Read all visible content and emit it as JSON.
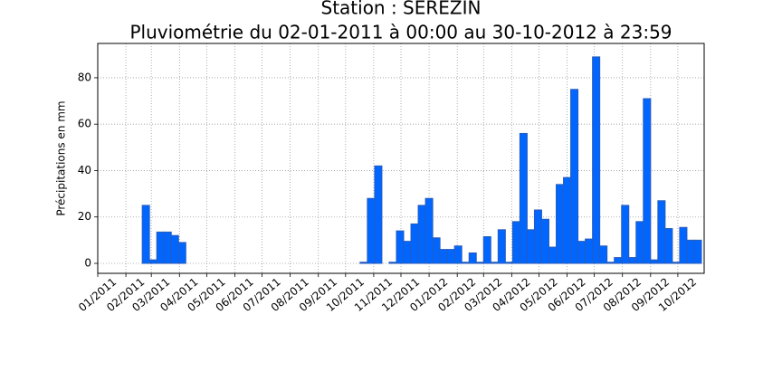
{
  "chart_data": {
    "type": "bar",
    "title": "Station : SEREZIN",
    "subtitle": "Pluviométrie du 02-01-2011 à 00:00 au 30-10-2012 à 23:59",
    "ylabel": "Précipitations en mm",
    "color": "#0066ff",
    "grid": true,
    "bar_days": 8,
    "x": [
      "2011-01-02",
      "2011-01-10",
      "2011-01-18",
      "2011-01-26",
      "2011-02-03",
      "2011-02-11",
      "2011-02-19",
      "2011-02-27",
      "2011-03-07",
      "2011-03-15",
      "2011-03-23",
      "2011-03-31",
      "2011-04-08",
      "2011-04-16",
      "2011-04-24",
      "2011-05-02",
      "2011-05-10",
      "2011-05-18",
      "2011-05-26",
      "2011-06-03",
      "2011-06-11",
      "2011-06-19",
      "2011-06-27",
      "2011-07-05",
      "2011-07-13",
      "2011-07-21",
      "2011-07-29",
      "2011-08-06",
      "2011-08-14",
      "2011-08-22",
      "2011-08-30",
      "2011-09-07",
      "2011-09-15",
      "2011-09-23",
      "2011-10-01",
      "2011-10-09",
      "2011-10-17",
      "2011-10-25",
      "2011-11-02",
      "2011-11-10",
      "2011-11-18",
      "2011-11-26",
      "2011-12-04",
      "2011-12-12",
      "2011-12-20",
      "2011-12-28",
      "2012-01-05",
      "2012-01-13",
      "2012-01-21",
      "2012-01-29",
      "2012-02-06",
      "2012-02-14",
      "2012-02-22",
      "2012-03-01",
      "2012-03-09",
      "2012-03-17",
      "2012-03-25",
      "2012-04-02",
      "2012-04-10",
      "2012-04-18",
      "2012-04-26",
      "2012-05-04",
      "2012-05-12",
      "2012-05-20",
      "2012-05-28",
      "2012-06-05",
      "2012-06-13",
      "2012-06-21",
      "2012-06-29",
      "2012-07-07",
      "2012-07-15",
      "2012-07-23",
      "2012-07-31",
      "2012-08-08",
      "2012-08-16",
      "2012-08-24",
      "2012-09-01",
      "2012-09-09",
      "2012-09-17",
      "2012-09-25",
      "2012-10-03",
      "2012-10-11",
      "2012-10-19"
    ],
    "values": [
      0,
      0,
      0,
      0,
      0,
      0,
      25,
      1.5,
      13.5,
      13.5,
      12,
      9,
      0,
      0,
      0,
      0,
      0,
      0,
      0,
      0,
      0,
      0,
      0,
      0,
      0,
      0,
      0,
      0,
      0,
      0,
      0,
      0,
      0,
      0,
      0,
      0,
      0.5,
      28,
      42,
      0,
      0.5,
      14,
      9.5,
      17,
      25,
      28,
      11,
      6,
      6,
      7.5,
      0.5,
      4.5,
      0.5,
      11.5,
      0.5,
      14.5,
      0.5,
      18,
      56,
      14.5,
      23,
      19,
      7,
      34,
      37,
      75,
      9.5,
      10.5,
      89,
      7.5,
      0.5,
      2.5,
      25,
      2.5,
      18,
      71,
      1.5,
      27,
      15,
      0.5,
      15.5,
      10,
      10
    ],
    "xlim": [
      "2011-01-01",
      "2012-10-30"
    ],
    "xticks": [
      {
        "value": "2011-01-01",
        "label": "01/2011"
      },
      {
        "value": "2011-02-01",
        "label": "02/2011"
      },
      {
        "value": "2011-03-01",
        "label": "03/2011"
      },
      {
        "value": "2011-04-01",
        "label": "04/2011"
      },
      {
        "value": "2011-05-01",
        "label": "05/2011"
      },
      {
        "value": "2011-06-01",
        "label": "06/2011"
      },
      {
        "value": "2011-07-01",
        "label": "07/2011"
      },
      {
        "value": "2011-08-01",
        "label": "08/2011"
      },
      {
        "value": "2011-09-01",
        "label": "09/2011"
      },
      {
        "value": "2011-10-01",
        "label": "10/2011"
      },
      {
        "value": "2011-11-01",
        "label": "11/2011"
      },
      {
        "value": "2011-12-01",
        "label": "12/2011"
      },
      {
        "value": "2012-01-01",
        "label": "01/2012"
      },
      {
        "value": "2012-02-01",
        "label": "02/2012"
      },
      {
        "value": "2012-03-01",
        "label": "03/2012"
      },
      {
        "value": "2012-04-01",
        "label": "04/2012"
      },
      {
        "value": "2012-05-01",
        "label": "05/2012"
      },
      {
        "value": "2012-06-01",
        "label": "06/2012"
      },
      {
        "value": "2012-07-01",
        "label": "07/2012"
      },
      {
        "value": "2012-08-01",
        "label": "08/2012"
      },
      {
        "value": "2012-09-01",
        "label": "09/2012"
      },
      {
        "value": "2012-10-01",
        "label": "10/2012"
      }
    ],
    "ylim": [
      -4.3,
      94.8
    ],
    "yticks": [
      0,
      20,
      40,
      60,
      80
    ]
  }
}
